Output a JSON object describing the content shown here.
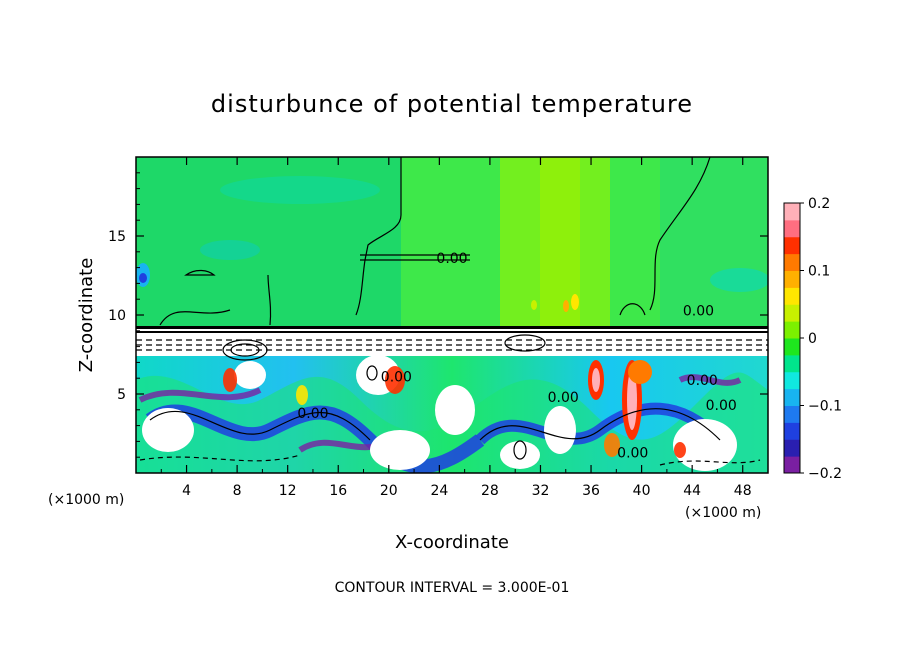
{
  "chart_data": {
    "type": "heatmap",
    "title": "disturbunce of potential temperature",
    "xlabel": "X-coordinate",
    "ylabel": "Z-coordinate",
    "x_unit_left": "(×1000 m)",
    "x_unit_right": "(×1000 m)",
    "footer": "CONTOUR INTERVAL = 3.000E-01",
    "xlim": [
      0,
      50
    ],
    "ylim": [
      0,
      20
    ],
    "x_ticks": [
      4,
      8,
      12,
      16,
      20,
      24,
      28,
      32,
      36,
      40,
      44,
      48
    ],
    "y_ticks": [
      5,
      10,
      15
    ],
    "colorbar": {
      "range": [
        -0.2,
        0.2
      ],
      "tick_values": [
        0.2,
        0.1,
        0,
        -0.1,
        -0.2
      ],
      "tick_labels": [
        "0.2",
        "0.1",
        "0",
        "−0.1",
        "−0.2"
      ],
      "colors": [
        "#7a1fa2",
        "#2a1fb0",
        "#1f40e0",
        "#1e7af0",
        "#18b4f0",
        "#10e8e0",
        "#00e58c",
        "#1ee61e",
        "#7cf000",
        "#c8f000",
        "#ffe600",
        "#ffb000",
        "#ff7a00",
        "#ff3000",
        "#ff6e80",
        "#ffb0b8"
      ]
    },
    "contour_labels": [
      {
        "text": "0.00",
        "x": 25.0,
        "z": 13.6
      },
      {
        "text": "0.00",
        "x": 44.5,
        "z": 10.3
      },
      {
        "text": "0.00",
        "x": 14.0,
        "z": 3.8
      },
      {
        "text": "0.00",
        "x": 20.6,
        "z": 6.1
      },
      {
        "text": "0.00",
        "x": 33.8,
        "z": 4.8
      },
      {
        "text": "0.00",
        "x": 39.3,
        "z": 1.3
      },
      {
        "text": "0.00",
        "x": 44.8,
        "z": 5.9
      },
      {
        "text": "0.00",
        "x": 46.3,
        "z": 4.3
      }
    ]
  }
}
